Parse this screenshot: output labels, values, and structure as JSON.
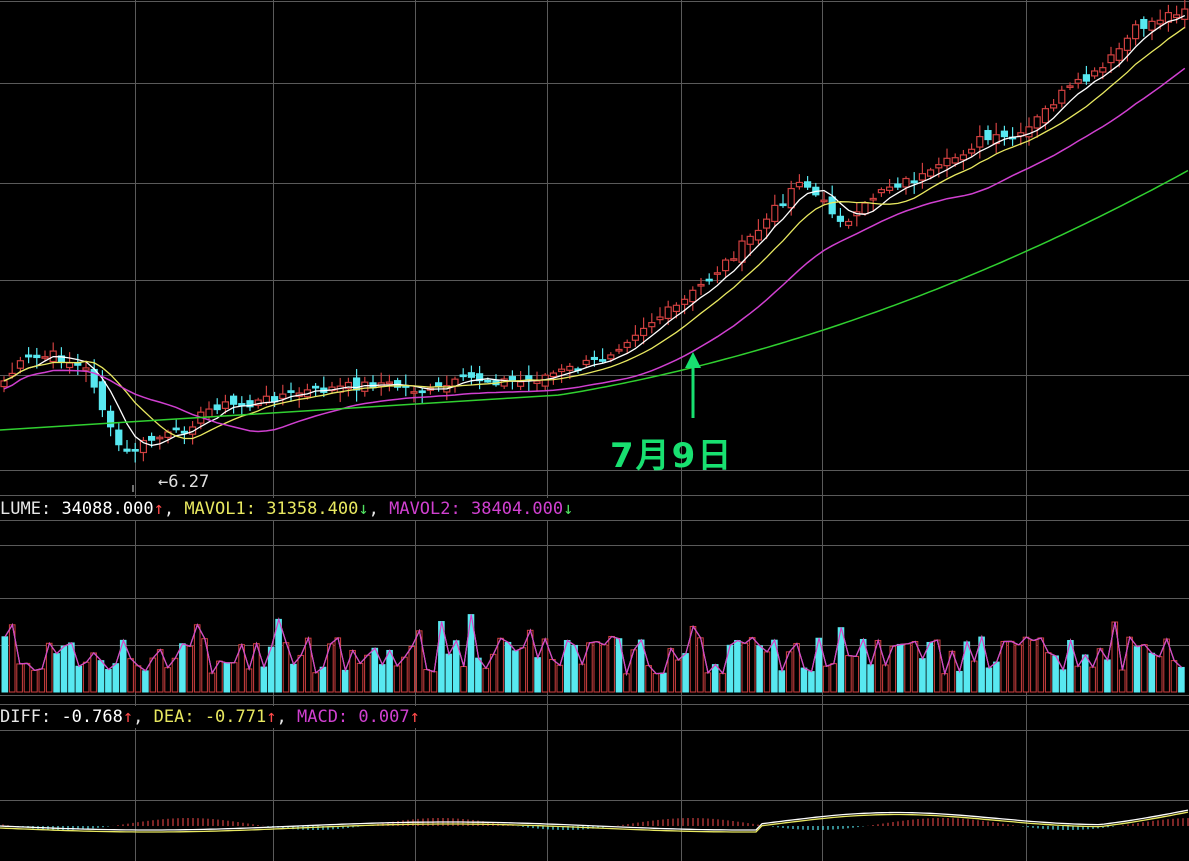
{
  "chart_data": [
    {
      "type": "candlestick",
      "panel": "price",
      "annotations": {
        "date_label": "7月9日",
        "low_marker": "6.27"
      },
      "candles": [],
      "colors": {
        "up": "#d04040",
        "down": "#58e8f0",
        "ma1": "#ffffff",
        "ma2": "#e8e860",
        "ma3": "#d040d0",
        "ma4": "#30d030"
      }
    },
    {
      "type": "bar",
      "panel": "volume",
      "labels": {
        "volume": "LUME:",
        "volume_value": "34088.000",
        "mavol1": "MAVOL1:",
        "mavol1_value": "31358.400",
        "mavol2": "MAVOL2:",
        "mavol2_value": "38404.000"
      },
      "values": []
    },
    {
      "type": "line",
      "panel": "macd",
      "labels": {
        "diff": "DIFF:",
        "diff_value": "-0.768",
        "dea": "DEA:",
        "dea_value": "-0.771",
        "macd": "MACD:",
        "macd_value": "0.007"
      }
    }
  ],
  "ui": {
    "arrow_up": "↑",
    "arrow_down": "↓",
    "separator": ",",
    "low_arrow": "←"
  }
}
